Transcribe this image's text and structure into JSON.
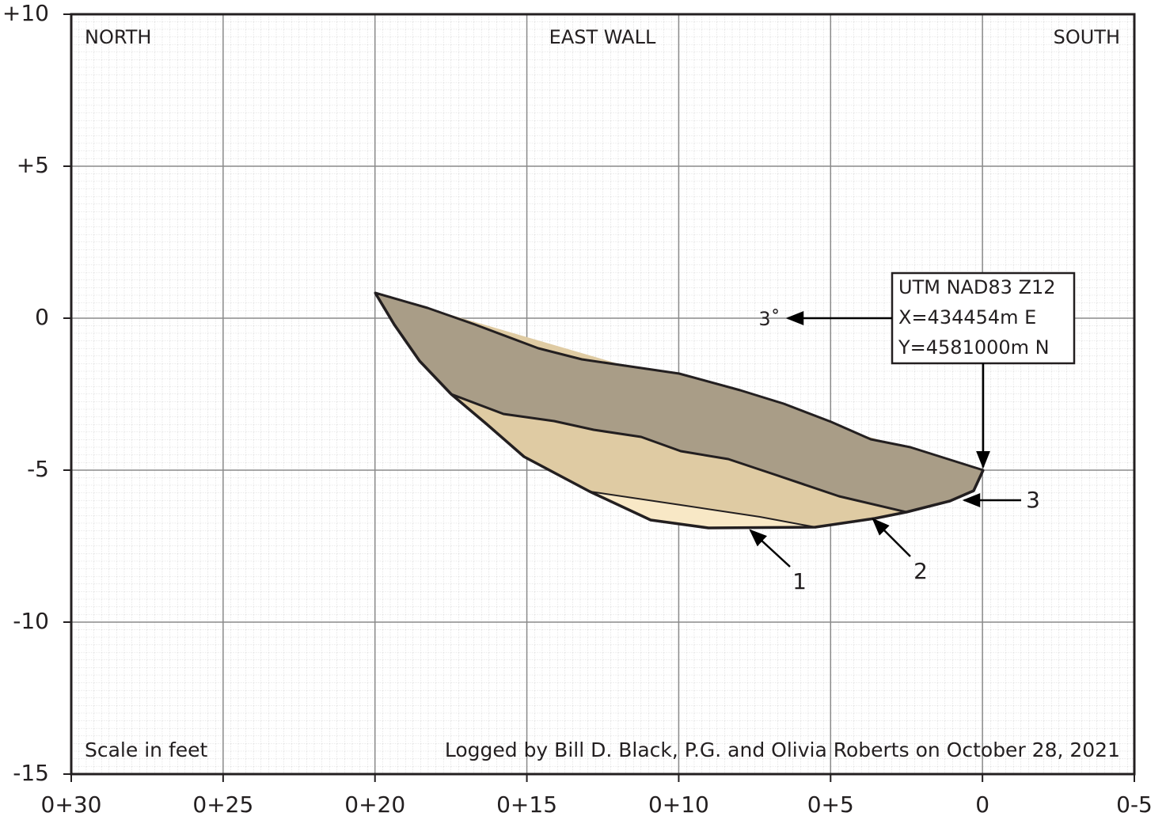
{
  "header": {
    "left": "NORTH",
    "center": "EAST WALL",
    "right": "SOUTH"
  },
  "x_tick_labels": [
    "0+30",
    "0+25",
    "0+20",
    "0+15",
    "0+10",
    "0+5",
    "0",
    "0-5"
  ],
  "y_tick_labels": [
    "+10",
    "+5",
    "0",
    "-5",
    "-10",
    "-15"
  ],
  "location_box": [
    "UTM NAD83 Z12",
    "X=434454m E",
    "Y=4581000m N"
  ],
  "dip_label": "3˚",
  "unit_labels": [
    "1",
    "2",
    "3"
  ],
  "footer": {
    "scale": "Scale in feet",
    "credit": "Logged by Bill D. Black, P.G. and Olivia Roberts on October 28, 2021"
  }
}
